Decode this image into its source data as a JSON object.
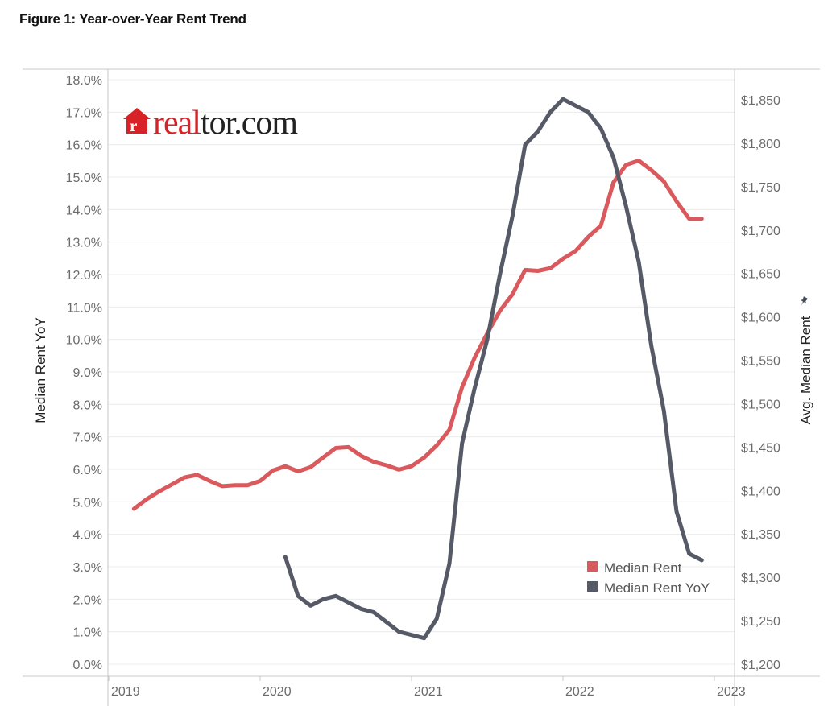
{
  "figure": {
    "title": "Figure 1: Year-over-Year Rent Trend"
  },
  "logo": {
    "text_red": "real",
    "text_dark": "tor.com",
    "mark": "r",
    "icon": "realtor-house-icon"
  },
  "colors": {
    "median_rent": "#d9595d",
    "median_rent_yoy": "#565a66",
    "grid": "#ececec",
    "axis": "#c8c8c8"
  },
  "chart_data": {
    "type": "line",
    "title": "Figure 1: Year-over-Year Rent Trend",
    "x_ticks": [
      "2019",
      "2020",
      "2021",
      "2022",
      "2023"
    ],
    "left_axis": {
      "label": "Median Rent YoY",
      "ylim": [
        0,
        18
      ],
      "ticks": [
        "0.0%",
        "1.0%",
        "2.0%",
        "3.0%",
        "4.0%",
        "5.0%",
        "6.0%",
        "7.0%",
        "8.0%",
        "9.0%",
        "10.0%",
        "11.0%",
        "12.0%",
        "13.0%",
        "14.0%",
        "15.0%",
        "16.0%",
        "17.0%",
        "18.0%"
      ]
    },
    "right_axis": {
      "label": "Avg. Median Rent",
      "ylim": [
        1200,
        1860
      ],
      "ticks": [
        "$1,200",
        "$1,250",
        "$1,300",
        "$1,350",
        "$1,400",
        "$1,450",
        "$1,500",
        "$1,550",
        "$1,600",
        "$1,650",
        "$1,700",
        "$1,750",
        "$1,800",
        "$1,850"
      ]
    },
    "legend": {
      "position": "bottom-right",
      "entries": [
        "Median Rent",
        "Median Rent YoY"
      ]
    },
    "grid": true,
    "series": [
      {
        "name": "Median Rent",
        "axis": "right",
        "x": [
          "2019-03",
          "2019-04",
          "2019-05",
          "2019-06",
          "2019-07",
          "2019-08",
          "2019-09",
          "2019-10",
          "2019-11",
          "2019-12",
          "2020-01",
          "2020-02",
          "2020-03",
          "2020-04",
          "2020-05",
          "2020-06",
          "2020-07",
          "2020-08",
          "2020-09",
          "2020-10",
          "2020-11",
          "2020-12",
          "2021-01",
          "2021-02",
          "2021-03",
          "2021-04",
          "2021-05",
          "2021-06",
          "2021-07",
          "2021-08",
          "2021-09",
          "2021-10",
          "2021-11",
          "2021-12",
          "2022-01",
          "2022-02",
          "2022-03",
          "2022-04",
          "2022-05",
          "2022-06",
          "2022-07",
          "2022-08",
          "2022-09",
          "2022-10",
          "2022-11",
          "2022-12"
        ],
        "values": [
          1379,
          1390,
          1399,
          1407,
          1415,
          1418,
          1411,
          1405,
          1406,
          1406,
          1411,
          1423,
          1428,
          1422,
          1427,
          1438,
          1449,
          1450,
          1440,
          1433,
          1429,
          1424,
          1428,
          1438,
          1452,
          1470,
          1519,
          1553,
          1581,
          1607,
          1626,
          1654,
          1653,
          1656,
          1667,
          1676,
          1692,
          1705,
          1755,
          1775,
          1780,
          1769,
          1756,
          1733,
          1713,
          1713
        ]
      },
      {
        "name": "Median Rent YoY",
        "axis": "left",
        "x": [
          "2020-03",
          "2020-04",
          "2020-05",
          "2020-06",
          "2020-07",
          "2020-08",
          "2020-09",
          "2020-10",
          "2020-11",
          "2020-12",
          "2021-01",
          "2021-02",
          "2021-03",
          "2021-04",
          "2021-05",
          "2021-06",
          "2021-07",
          "2021-08",
          "2021-09",
          "2021-10",
          "2021-11",
          "2021-12",
          "2022-01",
          "2022-02",
          "2022-03",
          "2022-04",
          "2022-05",
          "2022-06",
          "2022-07",
          "2022-08",
          "2022-09",
          "2022-10",
          "2022-11",
          "2022-12"
        ],
        "values": [
          3.3,
          2.1,
          1.8,
          2.0,
          2.1,
          1.9,
          1.7,
          1.6,
          1.3,
          1.0,
          0.9,
          0.8,
          1.4,
          3.1,
          6.8,
          8.5,
          10.0,
          12.0,
          13.8,
          16.0,
          16.4,
          17.0,
          17.4,
          17.2,
          17.0,
          16.5,
          15.6,
          14.1,
          12.4,
          9.8,
          7.8,
          4.7,
          3.4,
          3.2
        ]
      }
    ]
  }
}
